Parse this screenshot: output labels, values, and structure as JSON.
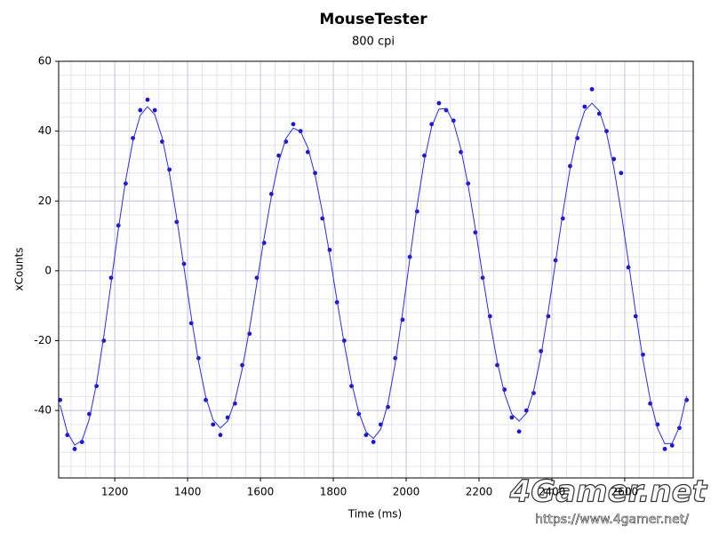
{
  "chart_data": {
    "type": "scatter",
    "title": "MouseTester",
    "subtitle": "800 cpi",
    "x_label": "Time (ms)",
    "y_label": "xCounts",
    "xlim": [
      1046,
      2788
    ],
    "ylim": [
      -59.3,
      60
    ],
    "xticks": [
      1200,
      1400,
      1600,
      1800,
      2000,
      2200,
      2400,
      2600
    ],
    "yticks": [
      -40,
      -20,
      0,
      20,
      40,
      60
    ],
    "grid": true,
    "x": [
      1050,
      1070,
      1090,
      1110,
      1130,
      1150,
      1170,
      1190,
      1210,
      1230,
      1250,
      1270,
      1290,
      1310,
      1330,
      1350,
      1370,
      1390,
      1410,
      1430,
      1450,
      1470,
      1490,
      1510,
      1530,
      1550,
      1570,
      1590,
      1610,
      1630,
      1650,
      1670,
      1690,
      1710,
      1730,
      1750,
      1770,
      1790,
      1810,
      1830,
      1850,
      1870,
      1890,
      1910,
      1930,
      1950,
      1970,
      1990,
      2010,
      2030,
      2050,
      2070,
      2090,
      2110,
      2130,
      2150,
      2170,
      2190,
      2210,
      2230,
      2250,
      2270,
      2290,
      2310,
      2330,
      2350,
      2370,
      2390,
      2410,
      2430,
      2450,
      2470,
      2490,
      2510,
      2530,
      2550,
      2570,
      2590,
      2610,
      2630,
      2650,
      2670,
      2690,
      2710,
      2730,
      2750,
      2770
    ],
    "series": [
      {
        "mode": "markers",
        "color": "#1414e6",
        "values": [
          -37,
          -47,
          -51,
          -49,
          -41,
          -33,
          -20,
          -2,
          13,
          25,
          38,
          46,
          49,
          46,
          37,
          29,
          14,
          2,
          -15,
          -25,
          -37,
          -44,
          -47,
          -42,
          -38,
          -27,
          -18,
          -2,
          8,
          22,
          33,
          37,
          42,
          40,
          34,
          28,
          15,
          6,
          -9,
          -20,
          -33,
          -41,
          -47,
          -49,
          -44,
          -39,
          -25,
          -14,
          4,
          17,
          33,
          42,
          48,
          46,
          43,
          34,
          25,
          11,
          -2,
          -13,
          -27,
          -34,
          -42,
          -46,
          -40,
          -35,
          -23,
          -13,
          3,
          15,
          30,
          38,
          47,
          52,
          45,
          40,
          32,
          28,
          1,
          -13,
          -24,
          -38,
          -44,
          -51,
          -50,
          -45,
          -37
        ]
      },
      {
        "mode": "line",
        "color": "#2a2af0",
        "values": [
          -38.4,
          -46.3,
          -49.9,
          -48.6,
          -42.5,
          -32.2,
          -18.7,
          -3.4,
          12.0,
          26.0,
          37.3,
          44.5,
          47,
          44.7,
          38.2,
          28.0,
          15.2,
          1,
          -13.2,
          -26.0,
          -36.2,
          -42.7,
          -45,
          -43.0,
          -37.2,
          -28.1,
          -16.6,
          -3.6,
          9.4,
          21.3,
          31.2,
          37.9,
          40.9,
          39.9,
          35.3,
          27.4,
          16.8,
          4.6,
          -8.4,
          -20.9,
          -32.0,
          -40.6,
          -46.1,
          -48,
          -45.4,
          -38.0,
          -26.5,
          -12.1,
          3.4,
          18.6,
          31.7,
          41.3,
          46.3,
          46.5,
          42.5,
          35.0,
          24.5,
          12.0,
          -1.4,
          -14.4,
          -26.0,
          -35.2,
          -41.0,
          -43,
          -40.8,
          -34.3,
          -24.3,
          -11.6,
          2.5,
          16.6,
          29.3,
          39.3,
          45.8,
          48,
          45.8,
          39.5,
          29.6,
          16.9,
          2.7,
          -11.9,
          -25.5,
          -36.9,
          -45.1,
          -49.5,
          -49.4,
          -44.7,
          -35.8
        ]
      }
    ]
  },
  "watermark": {
    "logo": "4Gamer.net",
    "url": "https://www.4gamer.net/"
  }
}
